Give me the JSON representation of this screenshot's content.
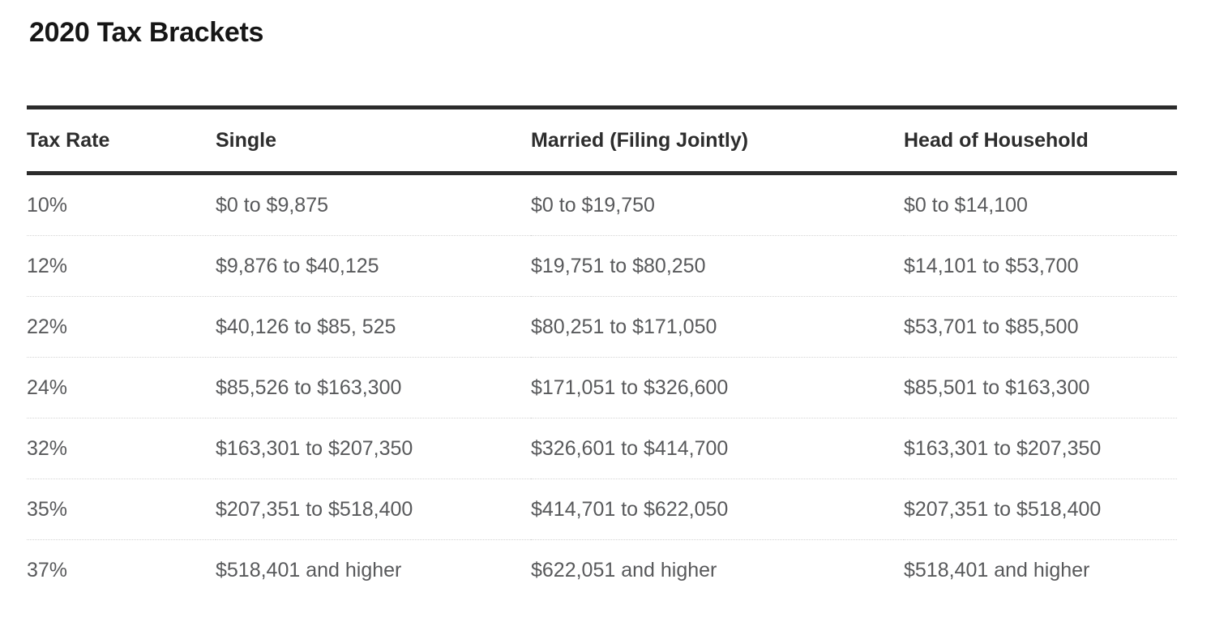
{
  "page": {
    "title": "2020 Tax Brackets"
  },
  "table": {
    "headers": {
      "rate": "Tax Rate",
      "single": "Single",
      "married": "Married (Filing Jointly)",
      "head_of_household": "Head of Household"
    },
    "rows": [
      {
        "rate": "10%",
        "single": "$0 to $9,875",
        "married": "$0 to $19,750",
        "head_of_household": "$0 to $14,100"
      },
      {
        "rate": "12%",
        "single": "$9,876 to $40,125",
        "married": "$19,751 to $80,250",
        "head_of_household": "$14,101 to $53,700"
      },
      {
        "rate": "22%",
        "single": "$40,126 to $85, 525",
        "married": "$80,251 to $171,050",
        "head_of_household": "$53,701 to $85,500"
      },
      {
        "rate": "24%",
        "single": "$85,526 to $163,300",
        "married": "$171,051 to $326,600",
        "head_of_household": "$85,501 to $163,300"
      },
      {
        "rate": "32%",
        "single": "$163,301 to $207,350",
        "married": "$326,601 to $414,700",
        "head_of_household": "$163,301 to $207,350"
      },
      {
        "rate": "35%",
        "single": "$207,351 to $518,400",
        "married": "$414,701 to $622,050",
        "head_of_household": "$207,351 to $518,400"
      },
      {
        "rate": "37%",
        "single": "$518,401 and higher",
        "married": "$622,051 and higher",
        "head_of_household": "$518,401 and higher"
      }
    ]
  },
  "chart_data": {
    "type": "table",
    "title": "2020 Tax Brackets",
    "columns": [
      "Tax Rate",
      "Single",
      "Married (Filing Jointly)",
      "Head of Household"
    ],
    "rows": [
      [
        "10%",
        "$0 to $9,875",
        "$0 to $19,750",
        "$0 to $14,100"
      ],
      [
        "12%",
        "$9,876 to $40,125",
        "$19,751 to $80,250",
        "$14,101 to $53,700"
      ],
      [
        "22%",
        "$40,126 to $85, 525",
        "$80,251 to $171,050",
        "$53,701 to $85,500"
      ],
      [
        "24%",
        "$85,526 to $163,300",
        "$171,051 to $326,600",
        "$85,501 to $163,300"
      ],
      [
        "32%",
        "$163,301 to $207,350",
        "$326,601 to $414,700",
        "$163,301 to $207,350"
      ],
      [
        "35%",
        "$207,351 to $518,400",
        "$414,701 to $622,050",
        "$207,351 to $518,400"
      ],
      [
        "37%",
        "$518,401 and higher",
        "$622,051 and higher",
        "$518,401 and higher"
      ]
    ],
    "layout_hints": {
      "rate_column_alignment": "right",
      "other_columns_alignment": "left",
      "header_rule": "thick dark line above and below header row",
      "row_separator": "light dotted line",
      "grid": "horizontal rules only"
    }
  },
  "colors": {
    "background": "#ffffff",
    "title_text": "#161616",
    "header_text": "#2d2d2d",
    "cell_text": "#58595b",
    "thick_rule": "#2b2b2b",
    "row_separator": "#d4d4d4"
  }
}
